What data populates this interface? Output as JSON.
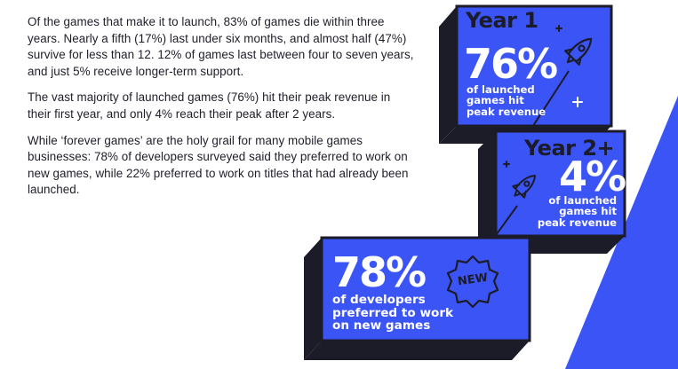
{
  "paragraphs": [
    "Of the games that make it to launch, 83% of games die within three years. Nearly a fifth (17%) last under six months, and almost half (47%) survive for less than 12. 12% of games last between four to seven years, and just 5% receive longer-term support.",
    "The vast majority of launched games (76%) hit their peak revenue in their first year, and only 4% reach their peak after 2 years.",
    "While ‘forever games’ are the holy grail for many mobile games businesses: 78% of developers surveyed said they preferred to work on new games, while 22% preferred to work on titles that had already been launched."
  ],
  "cards": {
    "year1": {
      "label": "Year 1",
      "value": "76%",
      "desc_lines": [
        "of launched",
        "games hit",
        "peak revenue"
      ]
    },
    "year2": {
      "label": "Year 2+",
      "value": "4%",
      "desc_lines": [
        "of launched",
        "games hit",
        "peak revenue"
      ]
    },
    "dev": {
      "value": "78%",
      "badge": "NEW",
      "desc_lines": [
        "of developers",
        "preferred to work",
        "on new games"
      ]
    }
  },
  "colors": {
    "card_blue": "#3b54f6",
    "shadow_dark": "#1c1c28",
    "label_tab": "#3b54f6"
  },
  "icons": [
    "rocket-icon",
    "plus-sparkle-icon",
    "new-badge-icon"
  ]
}
